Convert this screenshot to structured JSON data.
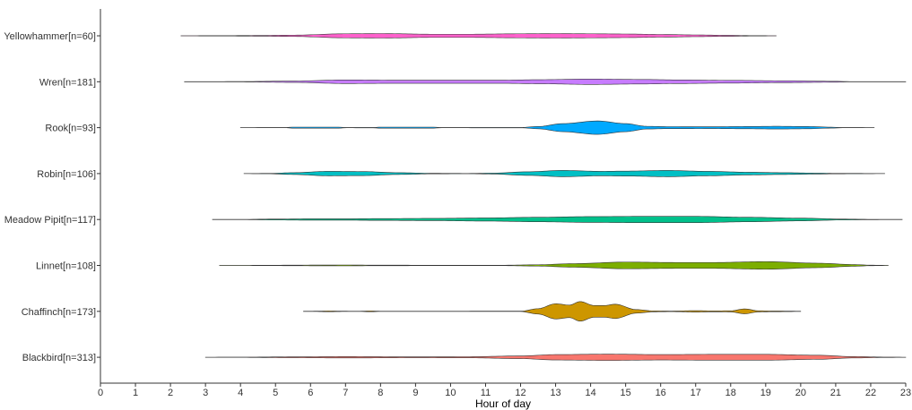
{
  "chart_data": {
    "type": "violin",
    "xlabel": "Hour of day",
    "ylabel": "",
    "xlim": [
      0,
      23
    ],
    "x_ticks": [
      0,
      1,
      2,
      3,
      4,
      5,
      6,
      7,
      8,
      9,
      10,
      11,
      12,
      13,
      14,
      15,
      16,
      17,
      18,
      19,
      20,
      21,
      22,
      23
    ],
    "grid": false,
    "legend": "none",
    "categories": [
      {
        "label": "Yellowhammer[n=60]",
        "color": "#FF61CC",
        "range": [
          2.3,
          19.3
        ],
        "profile": [
          [
            2.3,
            0.2
          ],
          [
            3.5,
            0.4
          ],
          [
            4.5,
            0.8
          ],
          [
            5.5,
            1.5
          ],
          [
            7.0,
            4.5
          ],
          [
            8.0,
            5.0
          ],
          [
            9.5,
            3.5
          ],
          [
            10.5,
            3.5
          ],
          [
            12.0,
            4.5
          ],
          [
            13.0,
            5.0
          ],
          [
            14.0,
            4.5
          ],
          [
            15.0,
            4.0
          ],
          [
            16.0,
            3.0
          ],
          [
            17.0,
            2.0
          ],
          [
            17.8,
            1.2
          ],
          [
            18.7,
            0.4
          ],
          [
            19.3,
            0.2
          ]
        ]
      },
      {
        "label": "Wren[n=181]",
        "color": "#C77CFF",
        "range": [
          2.4,
          23.0
        ],
        "profile": [
          [
            2.4,
            0.2
          ],
          [
            4.0,
            0.4
          ],
          [
            5.5,
            1.5
          ],
          [
            7.0,
            4.0
          ],
          [
            8.5,
            3.5
          ],
          [
            10.0,
            3.5
          ],
          [
            11.5,
            3.5
          ],
          [
            12.5,
            4.5
          ],
          [
            14.0,
            6.0
          ],
          [
            15.5,
            5.0
          ],
          [
            16.5,
            4.0
          ],
          [
            18.0,
            3.0
          ],
          [
            19.5,
            2.0
          ],
          [
            21.0,
            1.0
          ],
          [
            21.4,
            0.3
          ],
          [
            23.0,
            0.2
          ]
        ]
      },
      {
        "label": "Rook[n=93]",
        "color": "#00A9FF",
        "range": [
          4.0,
          22.1
        ],
        "profile": [
          [
            4.0,
            0.2
          ],
          [
            5.3,
            0.3
          ],
          [
            5.5,
            1.2
          ],
          [
            6.8,
            1.2
          ],
          [
            7.0,
            0.3
          ],
          [
            7.8,
            0.4
          ],
          [
            8.0,
            1.2
          ],
          [
            9.5,
            1.2
          ],
          [
            9.7,
            0.3
          ],
          [
            12.0,
            0.4
          ],
          [
            12.5,
            2.5
          ],
          [
            13.2,
            9.0
          ],
          [
            14.2,
            15.0
          ],
          [
            15.0,
            9.0
          ],
          [
            15.6,
            3.0
          ],
          [
            16.2,
            2.2
          ],
          [
            17.5,
            2.0
          ],
          [
            18.5,
            2.5
          ],
          [
            19.3,
            3.0
          ],
          [
            20.2,
            2.5
          ],
          [
            20.9,
            1.0
          ],
          [
            21.2,
            0.3
          ],
          [
            22.1,
            0.2
          ]
        ]
      },
      {
        "label": "Robin[n=106]",
        "color": "#00BFC4",
        "range": [
          4.1,
          22.4
        ],
        "profile": [
          [
            4.1,
            0.2
          ],
          [
            4.8,
            0.4
          ],
          [
            5.5,
            2.0
          ],
          [
            6.5,
            5.0
          ],
          [
            7.5,
            4.5
          ],
          [
            8.5,
            2.0
          ],
          [
            9.5,
            0.6
          ],
          [
            10.5,
            0.3
          ],
          [
            11.2,
            1.0
          ],
          [
            12.2,
            4.0
          ],
          [
            13.2,
            7.0
          ],
          [
            14.3,
            5.0
          ],
          [
            15.0,
            5.5
          ],
          [
            16.2,
            7.0
          ],
          [
            17.3,
            5.0
          ],
          [
            18.5,
            3.0
          ],
          [
            19.5,
            2.0
          ],
          [
            20.5,
            1.0
          ],
          [
            21.0,
            0.5
          ],
          [
            22.4,
            0.2
          ]
        ]
      },
      {
        "label": "Meadow Pipit[n=117]",
        "color": "#00C08B",
        "range": [
          3.2,
          22.9
        ],
        "profile": [
          [
            3.2,
            0.2
          ],
          [
            4.0,
            0.3
          ],
          [
            5.0,
            1.0
          ],
          [
            6.0,
            1.5
          ],
          [
            7.0,
            1.5
          ],
          [
            8.0,
            2.0
          ],
          [
            9.5,
            2.5
          ],
          [
            11.0,
            3.5
          ],
          [
            12.5,
            5.0
          ],
          [
            14.0,
            6.5
          ],
          [
            15.5,
            7.0
          ],
          [
            17.0,
            7.0
          ],
          [
            18.5,
            5.0
          ],
          [
            20.0,
            3.0
          ],
          [
            21.2,
            1.0
          ],
          [
            22.0,
            0.4
          ],
          [
            22.9,
            0.2
          ]
        ]
      },
      {
        "label": "Linnet[n=108]",
        "color": "#7CAE00",
        "range": [
          3.4,
          22.5
        ],
        "profile": [
          [
            3.4,
            0.2
          ],
          [
            4.8,
            0.3
          ],
          [
            5.5,
            0.7
          ],
          [
            7.0,
            1.0
          ],
          [
            8.0,
            0.6
          ],
          [
            10.0,
            0.4
          ],
          [
            11.5,
            0.5
          ],
          [
            12.5,
            1.5
          ],
          [
            13.5,
            4.0
          ],
          [
            15.0,
            7.5
          ],
          [
            16.5,
            6.5
          ],
          [
            17.5,
            6.5
          ],
          [
            19.0,
            8.5
          ],
          [
            20.5,
            5.0
          ],
          [
            21.5,
            2.0
          ],
          [
            22.0,
            0.6
          ],
          [
            22.5,
            0.2
          ]
        ]
      },
      {
        "label": "Chaffinch[n=173]",
        "color": "#CD9600",
        "range": [
          5.8,
          20.0
        ],
        "profile": [
          [
            5.8,
            0.2
          ],
          [
            6.2,
            0.4
          ],
          [
            6.5,
            0.9
          ],
          [
            6.9,
            0.4
          ],
          [
            7.4,
            0.3
          ],
          [
            7.7,
            0.9
          ],
          [
            8.0,
            0.3
          ],
          [
            12.0,
            0.4
          ],
          [
            12.5,
            6.0
          ],
          [
            13.0,
            17.0
          ],
          [
            13.4,
            14.0
          ],
          [
            13.7,
            22.0
          ],
          [
            14.1,
            13.0
          ],
          [
            14.4,
            13.0
          ],
          [
            14.7,
            16.0
          ],
          [
            15.3,
            4.0
          ],
          [
            15.8,
            1.0
          ],
          [
            16.3,
            0.6
          ],
          [
            17.0,
            1.5
          ],
          [
            17.5,
            1.0
          ],
          [
            18.0,
            1.2
          ],
          [
            18.4,
            5.5
          ],
          [
            18.8,
            1.2
          ],
          [
            19.2,
            0.8
          ],
          [
            19.6,
            0.6
          ],
          [
            20.0,
            0.2
          ]
        ]
      },
      {
        "label": "Blackbird[n=313]",
        "color": "#F8766D",
        "range": [
          3.0,
          23.0
        ],
        "profile": [
          [
            3.0,
            0.2
          ],
          [
            4.0,
            0.3
          ],
          [
            5.5,
            1.0
          ],
          [
            7.0,
            1.5
          ],
          [
            9.0,
            1.0
          ],
          [
            10.5,
            1.2
          ],
          [
            12.0,
            3.0
          ],
          [
            13.0,
            6.0
          ],
          [
            14.5,
            7.0
          ],
          [
            16.0,
            6.0
          ],
          [
            17.5,
            6.5
          ],
          [
            19.0,
            6.5
          ],
          [
            20.5,
            4.5
          ],
          [
            21.5,
            1.5
          ],
          [
            22.5,
            0.4
          ],
          [
            23.0,
            0.2
          ]
        ]
      }
    ]
  }
}
